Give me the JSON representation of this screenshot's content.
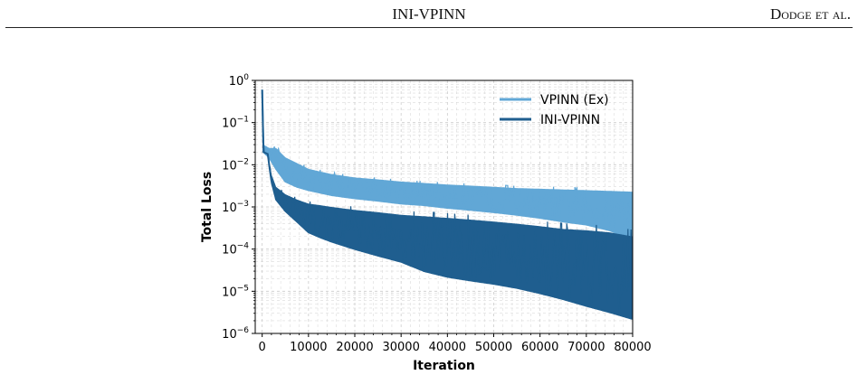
{
  "header": {
    "title": "INI-VPINN",
    "authors": "Dodge et al."
  },
  "colors": {
    "vpinn_ex": "#61a7d6",
    "ini_vpinn": "#1f5e8f",
    "grid": "#cccccc"
  },
  "chart_data": {
    "type": "line",
    "title": "",
    "xlabel": "Iteration",
    "ylabel": "Total Loss",
    "xlim": [
      -1500,
      80000
    ],
    "ylim": [
      1e-06,
      1
    ],
    "yscale": "log",
    "grid": true,
    "legend_position": "top-right",
    "x_ticks": [
      "0",
      "10000",
      "20000",
      "30000",
      "40000",
      "50000",
      "60000",
      "70000",
      "80000"
    ],
    "x_tick_values": [
      0,
      10000,
      20000,
      30000,
      40000,
      50000,
      60000,
      70000,
      80000
    ],
    "y_ticks": [
      {
        "value": 1,
        "base": "10",
        "exp": "0"
      },
      {
        "value": 0.1,
        "base": "10",
        "exp": "−1"
      },
      {
        "value": 0.01,
        "base": "10",
        "exp": "−2"
      },
      {
        "value": 0.001,
        "base": "10",
        "exp": "−3"
      },
      {
        "value": 0.0001,
        "base": "10",
        "exp": "−4"
      },
      {
        "value": 1e-05,
        "base": "10",
        "exp": "−5"
      },
      {
        "value": 1e-06,
        "base": "10",
        "exp": "−6"
      }
    ],
    "series": [
      {
        "name": "VPINN (Ex)",
        "band": "oscillating",
        "x": [
          0,
          300,
          1500,
          3000,
          5000,
          7500,
          10000,
          15000,
          20000,
          25000,
          30000,
          35000,
          40000,
          45000,
          50000,
          55000,
          60000,
          65000,
          70000,
          75000,
          80000
        ],
        "y_upper": [
          0.6,
          0.03,
          0.025,
          0.025,
          0.015,
          0.011,
          0.008,
          0.006,
          0.005,
          0.0045,
          0.004,
          0.0037,
          0.0034,
          0.0032,
          0.003,
          0.0028,
          0.0027,
          0.0026,
          0.0025,
          0.0024,
          0.0023
        ],
        "y_lower": [
          0.6,
          0.02,
          0.015,
          0.008,
          0.004,
          0.003,
          0.0025,
          0.0019,
          0.0016,
          0.0014,
          0.0012,
          0.0011,
          0.00095,
          0.00085,
          0.00075,
          0.00065,
          0.00055,
          0.00045,
          0.00038,
          0.00028,
          0.00017
        ]
      },
      {
        "name": "INI-VPINN",
        "band": "oscillating",
        "x": [
          0,
          300,
          1200,
          2000,
          3000,
          5000,
          7500,
          10000,
          12500,
          15000,
          20000,
          25000,
          30000,
          35000,
          40000,
          45000,
          50000,
          55000,
          60000,
          65000,
          70000,
          75000,
          80000
        ],
        "y_upper": [
          0.6,
          0.02,
          0.018,
          0.006,
          0.003,
          0.002,
          0.0015,
          0.0012,
          0.0011,
          0.001,
          0.00085,
          0.00075,
          0.00065,
          0.0006,
          0.00055,
          0.0005,
          0.00045,
          0.0004,
          0.00035,
          0.0003,
          0.00028,
          0.00025,
          0.0002
        ],
        "y_lower": [
          0.6,
          0.02,
          0.018,
          0.004,
          0.0015,
          0.0008,
          0.00045,
          0.00025,
          0.00019,
          0.00015,
          0.0001,
          7e-05,
          5e-05,
          3e-05,
          2.2e-05,
          1.8e-05,
          1.5e-05,
          1.2e-05,
          9e-06,
          6.5e-06,
          4.5e-06,
          3.2e-06,
          2.2e-06
        ]
      }
    ]
  }
}
